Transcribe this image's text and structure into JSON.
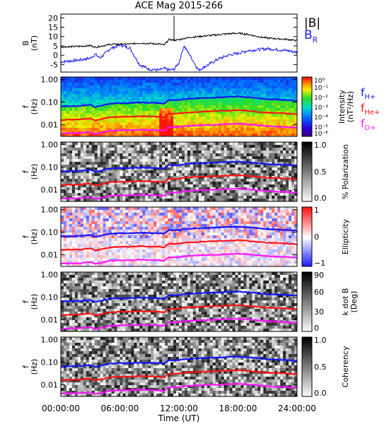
{
  "title": "ACE Mag 2015-266",
  "colors": {
    "bmag": "#000000",
    "br": "#1a1aff",
    "fH": "#1010ff",
    "fHe": "#ff1010",
    "fO": "#ff10ff",
    "spectrum_low": "#3a007a",
    "spectrum_high": "#ff1a00"
  },
  "xaxis": {
    "label": "Time (UT)",
    "ticks": [
      "00:00:00",
      "06:00:00",
      "12:00:00",
      "18:00:00",
      "24:00:00"
    ],
    "range_hours": [
      0,
      24
    ]
  },
  "panel_b": {
    "ylabel_top": "B",
    "ylabel_unit": "(nT)",
    "yticks": [
      "20",
      "15",
      "10",
      "5",
      "0",
      "-5"
    ],
    "yrange": [
      -9,
      22
    ],
    "legend_bmag": "|B|",
    "legend_br": "B",
    "legend_br_sub": "R"
  },
  "freq_axis": {
    "ylabel_top": "f",
    "ylabel_unit": "(Hz)",
    "yticks": [
      "1.00",
      "0.10",
      "0.01"
    ],
    "yrange_hz": [
      0.003,
      1.3
    ],
    "scale": "log"
  },
  "gyro_legend": [
    {
      "base": "f",
      "sub": "H+",
      "color": "#1010ff"
    },
    {
      "base": "f",
      "sub": "He+",
      "color": "#ff1010"
    },
    {
      "base": "f",
      "sub": "O+",
      "color": "#ff10ff"
    }
  ],
  "colorbars": [
    {
      "label": "Intensity",
      "unit": "(nT²/Hz)",
      "ticks": [
        "10⁰",
        "10⁻¹",
        "10⁻²",
        "10⁻³",
        "10⁻⁴",
        "10⁻⁵",
        "10⁻⁶"
      ],
      "scale": "rainbow"
    },
    {
      "label": "% Polarization",
      "unit": "",
      "ticks": [
        "1.0",
        "0.5",
        "0.0"
      ],
      "scale": "gray"
    },
    {
      "label": "Ellipticity",
      "unit": "",
      "ticks": [
        "1",
        "0",
        "−1"
      ],
      "scale": "bwr"
    },
    {
      "label": "k dot B",
      "unit": "(Deg)",
      "ticks": [
        "90",
        "60",
        "30",
        "0"
      ],
      "scale": "gray"
    },
    {
      "label": "Coherency",
      "unit": "",
      "ticks": [
        "1.0",
        "0.5",
        "0.0"
      ],
      "scale": "gray"
    }
  ],
  "chart_data": {
    "type": "line",
    "title": "ACE Mag 2015-266",
    "xlabel": "Time (UT)",
    "x_hours": [
      0,
      1,
      2,
      3,
      3.5,
      4,
      5,
      6,
      7,
      8,
      9,
      10,
      10.5,
      11,
      11.5,
      12,
      12.5,
      13,
      14,
      15,
      16,
      17,
      18,
      19,
      20,
      21,
      22,
      23,
      24
    ],
    "series": [
      {
        "name": "|B|",
        "unit": "nT",
        "values": [
          4.5,
          4.6,
          4.8,
          5.2,
          4.3,
          4.8,
          5.8,
          6.0,
          6.0,
          6.5,
          6.3,
          6.0,
          5.5,
          8.5,
          8.0,
          8.3,
          9.0,
          9.5,
          10.0,
          10.5,
          11.0,
          11.5,
          11.8,
          11.2,
          10.0,
          9.2,
          8.8,
          8.5,
          7.8
        ]
      },
      {
        "name": "B_R",
        "unit": "nT",
        "values": [
          -3.5,
          -3.0,
          -2.5,
          -1.5,
          0.5,
          -1.5,
          3.5,
          5.5,
          4.0,
          -5.0,
          -7.5,
          -8.0,
          -7.0,
          -8.0,
          -7.5,
          -4.0,
          5.0,
          1.0,
          -8.0,
          -5.0,
          -2.0,
          0.0,
          1.0,
          2.5,
          3.0,
          3.5,
          3.0,
          2.5,
          1.5
        ]
      },
      {
        "name": "f_H+",
        "unit": "Hz",
        "values": [
          0.065,
          0.066,
          0.068,
          0.075,
          0.06,
          0.068,
          0.086,
          0.09,
          0.09,
          0.095,
          0.093,
          0.09,
          0.085,
          0.125,
          0.12,
          0.123,
          0.135,
          0.14,
          0.15,
          0.155,
          0.16,
          0.17,
          0.175,
          0.165,
          0.15,
          0.135,
          0.13,
          0.125,
          0.115
        ]
      },
      {
        "name": "f_He+",
        "unit": "Hz",
        "values": [
          0.016,
          0.0165,
          0.017,
          0.019,
          0.015,
          0.017,
          0.021,
          0.0225,
          0.0225,
          0.024,
          0.023,
          0.0225,
          0.021,
          0.031,
          0.03,
          0.031,
          0.034,
          0.035,
          0.037,
          0.039,
          0.04,
          0.042,
          0.044,
          0.041,
          0.037,
          0.034,
          0.033,
          0.031,
          0.029
        ]
      },
      {
        "name": "f_O+",
        "unit": "Hz",
        "values": [
          0.004,
          0.0041,
          0.0042,
          0.0047,
          0.0038,
          0.0042,
          0.0054,
          0.0056,
          0.0056,
          0.006,
          0.0058,
          0.0056,
          0.0053,
          0.0078,
          0.0075,
          0.0077,
          0.0085,
          0.0088,
          0.0094,
          0.0097,
          0.01,
          0.0106,
          0.011,
          0.0103,
          0.0094,
          0.0085,
          0.0081,
          0.0078,
          0.0072
        ]
      }
    ]
  }
}
